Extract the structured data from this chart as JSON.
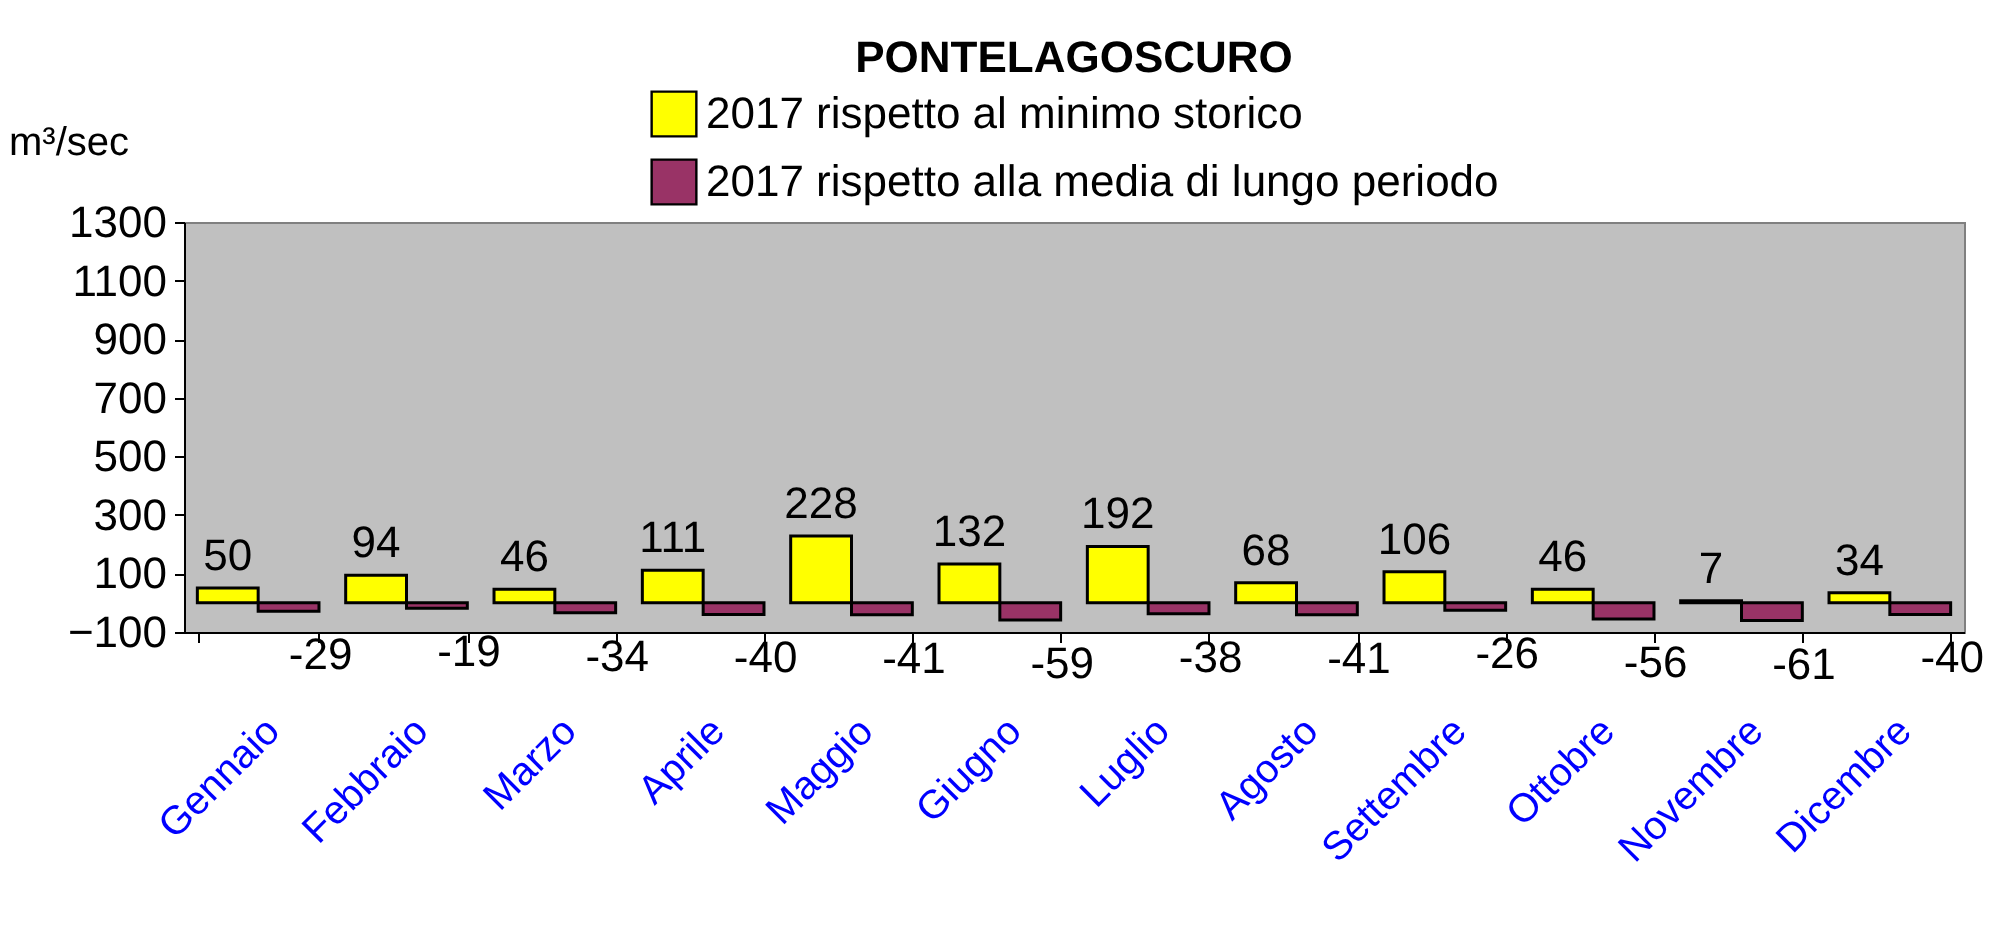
{
  "chart_data": {
    "type": "bar",
    "title": "PONTELAGOSCURO",
    "ylabel": "m³/sec",
    "categories": [
      "Gennaio",
      "Febbraio",
      "Marzo",
      "Aprile",
      "Maggio",
      "Giugno",
      "Luglio",
      "Agosto",
      "Settembre",
      "Ottobre",
      "Novembre",
      "Dicembre"
    ],
    "series": [
      {
        "name": "2017 rispetto al minimo storico",
        "color": "#ffff00",
        "values": [
          50,
          94,
          46,
          111,
          228,
          132,
          192,
          68,
          106,
          46,
          7,
          34
        ]
      },
      {
        "name": "2017 rispetto alla media di lungo periodo",
        "color": "#993366",
        "values": [
          -29,
          -19,
          -34,
          -40,
          -41,
          -59,
          -38,
          -41,
          -26,
          -56,
          -61,
          -40
        ]
      }
    ],
    "ylim": [
      -100,
      1300
    ],
    "yticks": [
      -100,
      100,
      300,
      500,
      700,
      900,
      1100,
      1300
    ],
    "data_labels": true,
    "legend": "top",
    "grid": false
  }
}
